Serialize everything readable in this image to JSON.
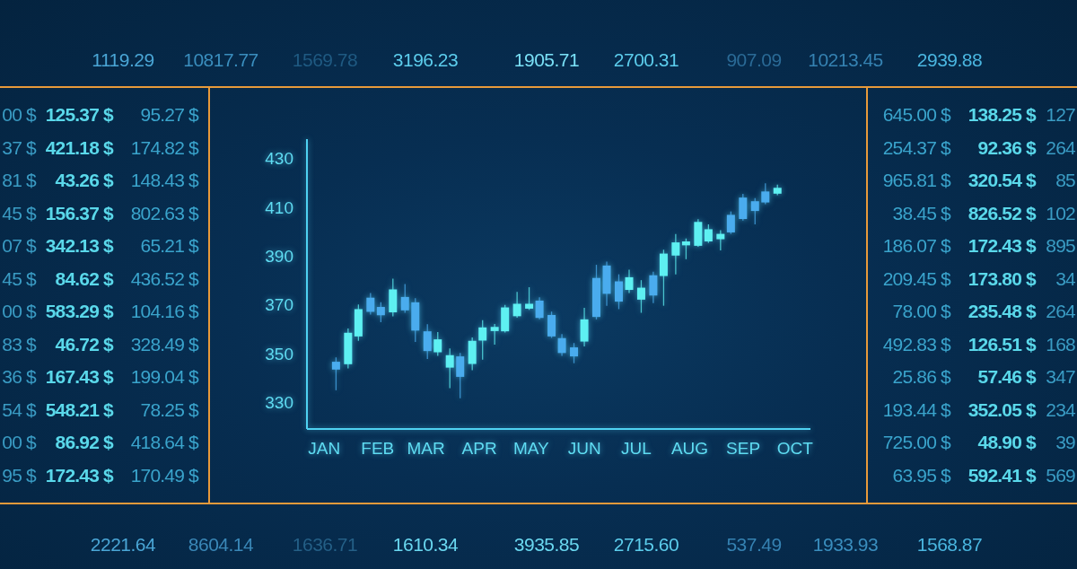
{
  "chart_data": {
    "type": "candlestick",
    "x": [
      "--01-22",
      "--01-29",
      "--02-04",
      "--02-11",
      "--02-17",
      "--02-24",
      "--03-03",
      "--03-09",
      "--03-16",
      "--03-22",
      "--03-29",
      "--04-04",
      "--04-11",
      "--04-17",
      "--04-24",
      "--04-30",
      "--05-07",
      "--05-14",
      "--05-20",
      "--05-27",
      "--06-02",
      "--06-09",
      "--06-15",
      "--06-22",
      "--06-28",
      "--07-05",
      "--07-11",
      "--07-18",
      "--07-25",
      "--07-31",
      "--08-07",
      "--08-13",
      "--08-20",
      "--08-26",
      "--09-02",
      "--09-08",
      "--09-15",
      "--09-22",
      "--09-28",
      "--10-05"
    ],
    "ohlc": [
      [
        346.6,
        348.4,
        334.9,
        343.4
      ],
      [
        345.6,
        360.3,
        343.9,
        358.5
      ],
      [
        357.0,
        370.1,
        355.2,
        368.2
      ],
      [
        372.9,
        374.8,
        366.0,
        367.1
      ],
      [
        369.1,
        371.0,
        362.8,
        365.7
      ],
      [
        366.9,
        380.7,
        365.2,
        376.3
      ],
      [
        373.2,
        378.5,
        366.7,
        367.7
      ],
      [
        371.0,
        372.7,
        354.7,
        359.4
      ],
      [
        359.1,
        362.0,
        347.7,
        351.0
      ],
      [
        350.5,
        358.8,
        349.0,
        355.8
      ],
      [
        344.2,
        352.1,
        335.8,
        349.3
      ],
      [
        348.8,
        350.2,
        331.6,
        340.4
      ],
      [
        345.7,
        356.6,
        343.1,
        355.2
      ],
      [
        355.3,
        363.7,
        347.5,
        360.7
      ],
      [
        359.2,
        362.1,
        353.6,
        360.9
      ],
      [
        359.1,
        369.9,
        358.6,
        368.9
      ],
      [
        365.3,
        375.3,
        364.7,
        370.4
      ],
      [
        368.4,
        377.2,
        367.9,
        370.4
      ],
      [
        371.7,
        373.1,
        364.0,
        364.6
      ],
      [
        365.8,
        367.2,
        356.4,
        357.0
      ],
      [
        356.3,
        358.0,
        349.0,
        350.2
      ],
      [
        352.5,
        354.3,
        346.0,
        348.8
      ],
      [
        354.9,
        368.7,
        352.9,
        364.0
      ],
      [
        381.0,
        386.4,
        364.0,
        365.0
      ],
      [
        386.1,
        387.7,
        369.6,
        374.5
      ],
      [
        379.6,
        382.5,
        368.2,
        371.3
      ],
      [
        376.1,
        384.4,
        374.8,
        381.3
      ],
      [
        372.1,
        380.1,
        366.7,
        377.0
      ],
      [
        382.1,
        383.6,
        370.7,
        373.8
      ],
      [
        381.8,
        392.6,
        369.6,
        391.0
      ],
      [
        390.2,
        399.0,
        382.5,
        395.6
      ],
      [
        394.4,
        397.2,
        388.7,
        396.0
      ],
      [
        394.2,
        405.1,
        393.8,
        404.0
      ],
      [
        396.0,
        403.0,
        395.4,
        401.0
      ],
      [
        396.9,
        400.6,
        392.3,
        399.1
      ],
      [
        406.9,
        408.3,
        399.1,
        399.7
      ],
      [
        414.0,
        415.5,
        404.6,
        405.2
      ],
      [
        412.5,
        413.8,
        403.0,
        408.5
      ],
      [
        416.5,
        419.9,
        411.3,
        412.0
      ],
      [
        415.6,
        419.3,
        415.0,
        418.0
      ]
    ],
    "colors": [
      "#4aacee",
      "#5ef0f2",
      "#5ef0f2",
      "#4aacee",
      "#4aacee",
      "#5ef0f2",
      "#4aacee",
      "#4aacee",
      "#4aacee",
      "#5ef0f2",
      "#5ef0f2",
      "#4aacee",
      "#5ef0f2",
      "#5ef0f2",
      "#5ef0f2",
      "#5ef0f2",
      "#5ef0f2",
      "#5ef0f2",
      "#4aacee",
      "#4aacee",
      "#4aacee",
      "#4aacee",
      "#5ef0f2",
      "#4aacee",
      "#4aacee",
      "#4aacee",
      "#5ef0f2",
      "#5ef0f2",
      "#4aacee",
      "#5ef0f2",
      "#5ef0f2",
      "#5ef0f2",
      "#5ef0f2",
      "#5ef0f2",
      "#5ef0f2",
      "#4aacee",
      "#4aacee",
      "#4aacee",
      "#4aacee",
      "#5ef0f2"
    ],
    "xlim": [
      "--01-05",
      "--10-24"
    ],
    "xticks": [
      {
        "value": "--01-15",
        "label": "JAN"
      },
      {
        "value": "--02-15",
        "label": "FEB"
      },
      {
        "value": "--03-15",
        "label": "MAR"
      },
      {
        "value": "--04-15",
        "label": "APR"
      },
      {
        "value": "--05-15",
        "label": "MAY"
      },
      {
        "value": "--06-15",
        "label": "JUN"
      },
      {
        "value": "--07-15",
        "label": "JUL"
      },
      {
        "value": "--08-15",
        "label": "AUG"
      },
      {
        "value": "--09-15",
        "label": "SEP"
      },
      {
        "value": "--10-15",
        "label": "OCT"
      }
    ],
    "ylim": [
      319,
      438
    ],
    "yticks": [
      330,
      350,
      370,
      390,
      410,
      430
    ],
    "annotations": [
      "1119.29",
      "10817.77",
      "1569.78",
      "3196.23",
      "1905.71",
      "2700.31",
      "907.09",
      "10213.45",
      "2939.88",
      "00 $",
      "125.37 $",
      "95.27 $",
      "37 $",
      "421.18 $",
      "174.82 $",
      "81 $",
      "43.26 $",
      "148.43 $",
      "45 $",
      "156.37 $",
      "802.63 $",
      "07 $",
      "342.13 $",
      "65.21 $",
      "45 $",
      "84.62 $",
      "436.52 $",
      "00 $",
      "583.29 $",
      "104.16 $",
      "83 $",
      "46.72 $",
      "328.49 $",
      "36 $",
      "167.43 $",
      "199.04 $",
      "54 $",
      "548.21 $",
      "78.25 $",
      "00 $",
      "86.92 $",
      "418.64 $",
      "95 $",
      "172.43 $",
      "170.49 $",
      "645.00 $",
      "138.25 $",
      "127",
      "254.37 $",
      "92.36 $",
      "264",
      "965.81 $",
      "320.54 $",
      "85",
      "38.45 $",
      "826.52 $",
      "102",
      "186.07 $",
      "172.43 $",
      "895",
      "209.45 $",
      "173.80 $",
      "34",
      "78.00 $",
      "235.48 $",
      "264",
      "492.83 $",
      "126.51 $",
      "168",
      "25.86 $",
      "57.46 $",
      "347",
      "193.44 $",
      "352.05 $",
      "234",
      "725.00 $",
      "48.90 $",
      "39",
      "63.95 $",
      "592.41 $",
      "569",
      "2221.64",
      "8604.14",
      "1636.71",
      "1610.34",
      "3935.85",
      "2715.60",
      "537.49",
      "1933.93",
      "1568.87"
    ]
  }
}
